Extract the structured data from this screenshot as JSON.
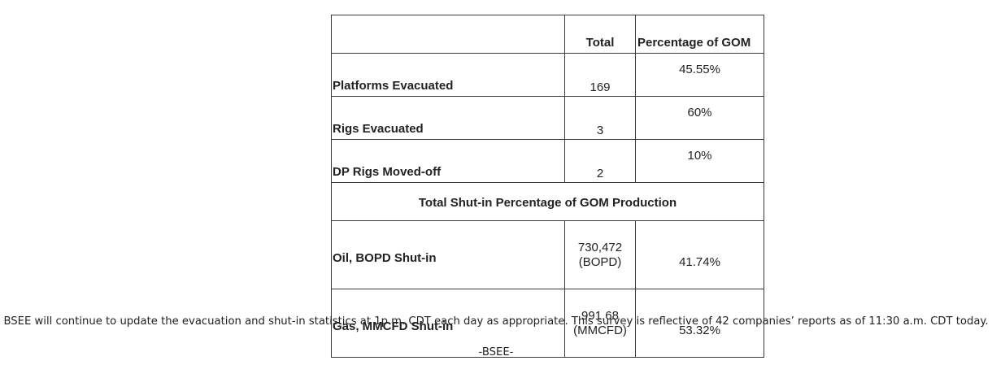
{
  "table": {
    "header": {
      "label": "",
      "total": "Total",
      "percentage": "Percentage of GOM"
    },
    "rows": [
      {
        "label": "Platforms Evacuated",
        "total": "169",
        "percentage": "45.55%"
      },
      {
        "label": "Rigs Evacuated",
        "total": "3",
        "percentage": "60%"
      },
      {
        "label": "DP Rigs Moved-off",
        "total": "2",
        "percentage": "10%"
      }
    ],
    "section_title": "Total Shut-in Percentage of GOM Production",
    "production_rows": [
      {
        "label": "Oil, BOPD Shut-in",
        "value": "730,472",
        "unit": "(BOPD)",
        "percentage": "41.74%"
      },
      {
        "label": "Gas, MMCFD Shut-in",
        "value": "991.68",
        "unit": "(MMCFD)",
        "percentage": "53.32%"
      }
    ]
  },
  "footer": {
    "note": "BSEE will continue to update the evacuation and shut-in statistics at 1p.m. CDT each day as appropriate. This survey is reflective of 42 companies’ reports as of 11:30 a.m. CDT today.",
    "signature": "-BSEE-"
  }
}
